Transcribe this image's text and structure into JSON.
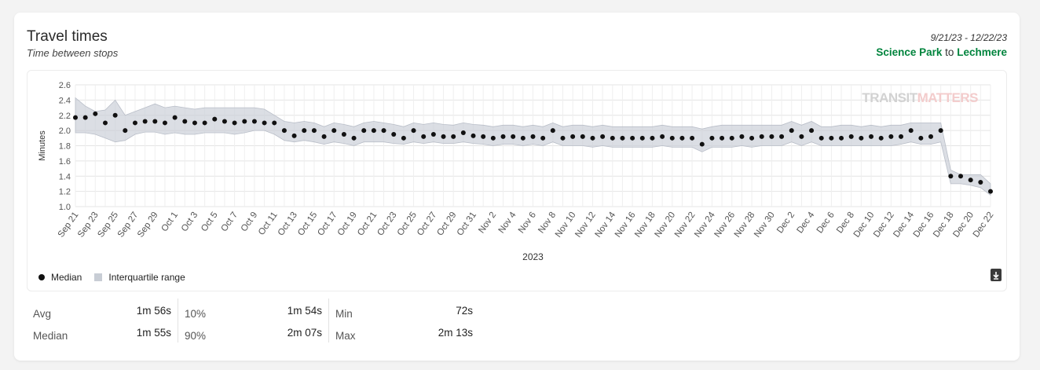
{
  "card": {
    "title": "Travel times",
    "subtitle": "Time between stops",
    "date_range": "9/21/23 - 12/22/23",
    "route": {
      "from": "Science Park",
      "connector": "to",
      "to": "Lechmere"
    }
  },
  "watermark": {
    "left": "TRANSIT",
    "right": "MATTERS"
  },
  "legend": {
    "median": "Median",
    "iqr": "Interquartile range"
  },
  "colors": {
    "accent_green": "#00843d",
    "band": "#c8cdd5",
    "point": "#111111"
  },
  "icons": {
    "download": "download-file-icon"
  },
  "stats": [
    {
      "label": "Avg",
      "value": "1m 56s"
    },
    {
      "label": "Median",
      "value": "1m 55s"
    },
    {
      "label": "10%",
      "value": "1m 54s"
    },
    {
      "label": "90%",
      "value": "2m 07s"
    },
    {
      "label": "Min",
      "value": "72s"
    },
    {
      "label": "Max",
      "value": "2m 13s"
    }
  ],
  "chart_data": {
    "type": "scatter",
    "title": "",
    "xlabel": "2023",
    "ylabel": "Minutes",
    "ylim": [
      1.0,
      2.6
    ],
    "yticks": [
      "1.0",
      "1.2",
      "1.4",
      "1.6",
      "1.8",
      "2.0",
      "2.2",
      "2.4",
      "2.6"
    ],
    "grid": true,
    "legend_position": "bottom-left",
    "x_tick_labels": [
      "Sep 21",
      "Sep 23",
      "Sep 25",
      "Sep 27",
      "Sep 29",
      "Oct 1",
      "Oct 3",
      "Oct 5",
      "Oct 7",
      "Oct 9",
      "Oct 11",
      "Oct 13",
      "Oct 15",
      "Oct 17",
      "Oct 19",
      "Oct 21",
      "Oct 23",
      "Oct 25",
      "Oct 27",
      "Oct 29",
      "Oct 31",
      "Nov 2",
      "Nov 4",
      "Nov 6",
      "Nov 8",
      "Nov 10",
      "Nov 12",
      "Nov 14",
      "Nov 16",
      "Nov 18",
      "Nov 20",
      "Nov 22",
      "Nov 24",
      "Nov 26",
      "Nov 28",
      "Nov 30",
      "Dec 2",
      "Dec 4",
      "Dec 6",
      "Dec 8",
      "Dec 10",
      "Dec 12",
      "Dec 14",
      "Dec 16",
      "Dec 18",
      "Dec 20",
      "Dec 22"
    ],
    "dates": [
      "Sep 21",
      "Sep 22",
      "Sep 23",
      "Sep 24",
      "Sep 25",
      "Sep 26",
      "Sep 27",
      "Sep 28",
      "Sep 29",
      "Sep 30",
      "Oct 1",
      "Oct 2",
      "Oct 3",
      "Oct 4",
      "Oct 5",
      "Oct 6",
      "Oct 7",
      "Oct 8",
      "Oct 9",
      "Oct 10",
      "Oct 11",
      "Oct 12",
      "Oct 13",
      "Oct 14",
      "Oct 15",
      "Oct 16",
      "Oct 17",
      "Oct 18",
      "Oct 19",
      "Oct 20",
      "Oct 21",
      "Oct 22",
      "Oct 23",
      "Oct 24",
      "Oct 25",
      "Oct 26",
      "Oct 27",
      "Oct 28",
      "Oct 29",
      "Oct 30",
      "Oct 31",
      "Nov 1",
      "Nov 2",
      "Nov 3",
      "Nov 4",
      "Nov 5",
      "Nov 6",
      "Nov 7",
      "Nov 8",
      "Nov 9",
      "Nov 10",
      "Nov 11",
      "Nov 12",
      "Nov 13",
      "Nov 14",
      "Nov 15",
      "Nov 16",
      "Nov 17",
      "Nov 18",
      "Nov 19",
      "Nov 20",
      "Nov 21",
      "Nov 22",
      "Nov 23",
      "Nov 24",
      "Nov 25",
      "Nov 26",
      "Nov 27",
      "Nov 28",
      "Nov 29",
      "Nov 30",
      "Dec 1",
      "Dec 2",
      "Dec 3",
      "Dec 4",
      "Dec 5",
      "Dec 6",
      "Dec 7",
      "Dec 8",
      "Dec 9",
      "Dec 10",
      "Dec 11",
      "Dec 12",
      "Dec 13",
      "Dec 14",
      "Dec 15",
      "Dec 16",
      "Dec 17",
      "Dec 18",
      "Dec 19",
      "Dec 20",
      "Dec 21",
      "Dec 22"
    ],
    "series": [
      {
        "name": "Median",
        "values": [
          2.17,
          2.17,
          2.22,
          2.1,
          2.2,
          2.0,
          2.1,
          2.12,
          2.12,
          2.1,
          2.17,
          2.12,
          2.1,
          2.1,
          2.15,
          2.12,
          2.1,
          2.12,
          2.12,
          2.1,
          2.1,
          2.0,
          1.93,
          2.0,
          2.0,
          1.92,
          2.0,
          1.95,
          1.9,
          2.0,
          2.0,
          2.0,
          1.95,
          1.9,
          2.0,
          1.92,
          1.95,
          1.92,
          1.92,
          1.97,
          1.93,
          1.92,
          1.9,
          1.92,
          1.92,
          1.9,
          1.92,
          1.9,
          2.0,
          1.9,
          1.92,
          1.92,
          1.9,
          1.92,
          1.9,
          1.9,
          1.9,
          1.9,
          1.9,
          1.92,
          1.9,
          1.9,
          1.9,
          1.82,
          1.9,
          1.9,
          1.9,
          1.92,
          1.9,
          1.92,
          1.92,
          1.92,
          2.0,
          1.92,
          2.0,
          1.9,
          1.9,
          1.9,
          1.92,
          1.9,
          1.92,
          1.9,
          1.92,
          1.92,
          2.0,
          1.9,
          1.92,
          2.0,
          1.4,
          1.4,
          1.35,
          1.32,
          1.2
        ]
      },
      {
        "name": "Interquartile range",
        "upper": [
          2.43,
          2.32,
          2.25,
          2.27,
          2.4,
          2.2,
          2.25,
          2.3,
          2.35,
          2.3,
          2.32,
          2.3,
          2.28,
          2.3,
          2.3,
          2.3,
          2.3,
          2.3,
          2.3,
          2.28,
          2.2,
          2.12,
          2.1,
          2.12,
          2.1,
          2.05,
          2.1,
          2.08,
          2.05,
          2.1,
          2.12,
          2.1,
          2.08,
          2.05,
          2.1,
          2.08,
          2.1,
          2.08,
          2.07,
          2.1,
          2.08,
          2.07,
          2.05,
          2.07,
          2.07,
          2.05,
          2.07,
          2.05,
          2.1,
          2.05,
          2.07,
          2.07,
          2.05,
          2.07,
          2.05,
          2.05,
          2.05,
          2.05,
          2.05,
          2.07,
          2.05,
          2.05,
          2.05,
          2.02,
          2.05,
          2.07,
          2.07,
          2.07,
          2.07,
          2.07,
          2.07,
          2.07,
          2.12,
          2.07,
          2.12,
          2.05,
          2.05,
          2.07,
          2.07,
          2.05,
          2.07,
          2.05,
          2.07,
          2.07,
          2.1,
          2.1,
          2.1,
          2.1,
          1.48,
          1.42,
          1.42,
          1.42,
          1.3
        ],
        "lower": [
          1.97,
          1.97,
          1.95,
          1.9,
          1.85,
          1.87,
          1.95,
          1.98,
          1.98,
          1.95,
          1.97,
          1.95,
          1.95,
          1.97,
          1.97,
          1.97,
          1.95,
          1.97,
          2.0,
          2.0,
          1.95,
          1.87,
          1.85,
          1.87,
          1.85,
          1.82,
          1.85,
          1.83,
          1.8,
          1.85,
          1.85,
          1.85,
          1.83,
          1.82,
          1.85,
          1.83,
          1.85,
          1.83,
          1.83,
          1.85,
          1.83,
          1.82,
          1.8,
          1.82,
          1.82,
          1.8,
          1.82,
          1.8,
          1.85,
          1.8,
          1.8,
          1.8,
          1.78,
          1.8,
          1.78,
          1.78,
          1.78,
          1.78,
          1.78,
          1.8,
          1.78,
          1.78,
          1.78,
          1.72,
          1.78,
          1.78,
          1.78,
          1.8,
          1.78,
          1.8,
          1.8,
          1.8,
          1.85,
          1.8,
          1.85,
          1.8,
          1.8,
          1.8,
          1.8,
          1.8,
          1.8,
          1.8,
          1.8,
          1.82,
          1.85,
          1.82,
          1.82,
          1.85,
          1.3,
          1.3,
          1.28,
          1.25,
          1.15
        ]
      }
    ]
  }
}
